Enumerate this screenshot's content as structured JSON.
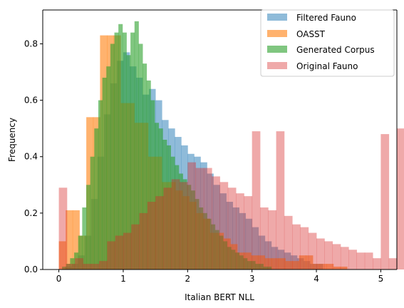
{
  "chart_data": {
    "type": "histogram",
    "xlabel": "Italian BERT NLL",
    "ylabel": "Frequency",
    "xlim": [
      -0.25,
      5.25
    ],
    "ylim": [
      0,
      0.92
    ],
    "xticks": [
      0,
      1,
      2,
      3,
      4,
      5
    ],
    "yticks": [
      0.0,
      0.2,
      0.4,
      0.6,
      0.8
    ],
    "xtick_labels": [
      "0",
      "1",
      "2",
      "3",
      "4",
      "5"
    ],
    "ytick_labels": [
      "0.0",
      "0.2",
      "0.4",
      "0.6",
      "0.8"
    ],
    "grid": false,
    "legend_position": "top-right",
    "series": [
      {
        "name": "Filtered Fauno",
        "color": "#1f77b4",
        "bin_start": 0.1,
        "bin_width": 0.1,
        "values": [
          0.01,
          0.02,
          0.05,
          0.12,
          0.25,
          0.4,
          0.55,
          0.66,
          0.74,
          0.77,
          0.72,
          0.68,
          0.62,
          0.64,
          0.6,
          0.53,
          0.5,
          0.47,
          0.44,
          0.41,
          0.4,
          0.38,
          0.34,
          0.3,
          0.27,
          0.24,
          0.22,
          0.2,
          0.18,
          0.15,
          0.12,
          0.1,
          0.08,
          0.07,
          0.06,
          0.05,
          0.04,
          0.03,
          0.02,
          0.02
        ]
      },
      {
        "name": "OASST",
        "color": "#ff7f0e",
        "start": 0,
        "step": 0.1066,
        "values": [
          0.1,
          0.21,
          0.21,
          0.12,
          0.54,
          0.54,
          0.83,
          0.83,
          0.83,
          0.59,
          0.59,
          0.52,
          0.52,
          0.4,
          0.4,
          0.31,
          0.31,
          0.28,
          0.26,
          0.24,
          0.2,
          0.18,
          0.13,
          0.13,
          0.11,
          0.09,
          0.06,
          0.06,
          0.05,
          0.05,
          0.04,
          0.04,
          0.04,
          0.03,
          0.03,
          0.05,
          0.05,
          0.02,
          0.02,
          0.02,
          0.01,
          0.01
        ]
      },
      {
        "name": "Generated Corpus",
        "color": "#2ca02c",
        "bin_start": 0.05,
        "bin_width": 0.0625,
        "values": [
          0.01,
          0.02,
          0.04,
          0.06,
          0.12,
          0.22,
          0.3,
          0.4,
          0.5,
          0.6,
          0.68,
          0.72,
          0.8,
          0.84,
          0.87,
          0.84,
          0.76,
          0.84,
          0.88,
          0.8,
          0.73,
          0.67,
          0.6,
          0.52,
          0.5,
          0.46,
          0.44,
          0.4,
          0.37,
          0.34,
          0.32,
          0.3,
          0.28,
          0.25,
          0.22,
          0.2,
          0.18,
          0.16,
          0.14,
          0.12,
          0.1,
          0.08,
          0.07,
          0.06,
          0.05,
          0.04,
          0.03,
          0.03,
          0.02,
          0.02,
          0.01,
          0.01
        ]
      },
      {
        "name": "Original Fauno",
        "color": "#d62728",
        "start": 0,
        "step": 0.125,
        "values": [
          0.29,
          0.02,
          0.04,
          0.02,
          0.02,
          0.03,
          0.1,
          0.12,
          0.13,
          0.16,
          0.2,
          0.24,
          0.26,
          0.29,
          0.32,
          0.31,
          0.38,
          0.36,
          0.36,
          0.33,
          0.31,
          0.29,
          0.27,
          0.26,
          0.49,
          0.22,
          0.21,
          0.49,
          0.19,
          0.16,
          0.15,
          0.13,
          0.11,
          0.1,
          0.09,
          0.08,
          0.07,
          0.06,
          0.06,
          0.04,
          0.48,
          0.04,
          0.5,
          0.04,
          0.02,
          0.02
        ]
      }
    ]
  }
}
